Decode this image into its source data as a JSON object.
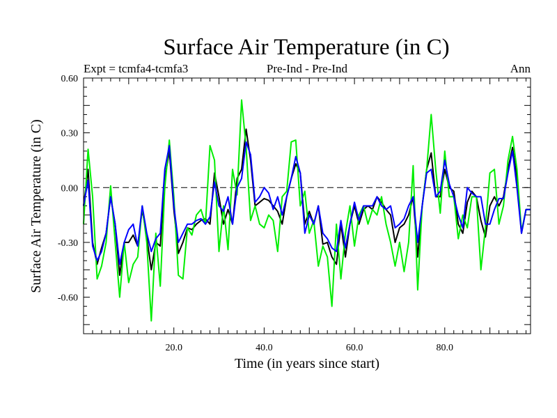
{
  "chart_data": {
    "type": "line",
    "title": "Surface Air Temperature (in C)",
    "subtitle_left": "Expt = tcmfa4-tcmfa3",
    "subtitle_center": "Pre-Ind - Pre-Ind",
    "subtitle_right": "Ann",
    "xlabel": "Time (in years since start)",
    "ylabel": "Surface Air Temperature (in C)",
    "xlim": [
      0,
      99
    ],
    "ylim": [
      -0.8,
      0.6
    ],
    "x_ticks": [
      20,
      40,
      60,
      80
    ],
    "x_tick_labels": [
      "20.0",
      "40.0",
      "60.0",
      "80.0"
    ],
    "y_ticks": [
      0.6,
      0.3,
      0.0,
      -0.3,
      -0.6
    ],
    "y_tick_labels": [
      "0.60",
      "0.30",
      "0.00",
      "-0.30",
      "-0.60"
    ],
    "zero_line": "dashed",
    "x": [
      0,
      1,
      2,
      3,
      4,
      5,
      6,
      7,
      8,
      9,
      10,
      11,
      12,
      13,
      14,
      15,
      16,
      17,
      18,
      19,
      20,
      21,
      22,
      23,
      24,
      25,
      26,
      27,
      28,
      29,
      30,
      31,
      32,
      33,
      34,
      35,
      36,
      37,
      38,
      39,
      40,
      41,
      42,
      43,
      44,
      45,
      46,
      47,
      48,
      49,
      50,
      51,
      52,
      53,
      54,
      55,
      56,
      57,
      58,
      59,
      60,
      61,
      62,
      63,
      64,
      65,
      66,
      67,
      68,
      69,
      70,
      71,
      72,
      73,
      74,
      75,
      76,
      77,
      78,
      79,
      80,
      81,
      82,
      83,
      84,
      85,
      86,
      87,
      88,
      89,
      90,
      91,
      92,
      93,
      94,
      95,
      96,
      97,
      98,
      99
    ],
    "series": [
      {
        "name": "black",
        "color": "#000000",
        "values": [
          -0.1,
          0.1,
          -0.3,
          -0.42,
          -0.33,
          -0.25,
          -0.05,
          -0.2,
          -0.48,
          -0.3,
          -0.3,
          -0.26,
          -0.32,
          -0.12,
          -0.27,
          -0.45,
          -0.3,
          -0.32,
          0.05,
          0.2,
          -0.12,
          -0.36,
          -0.3,
          -0.22,
          -0.23,
          -0.2,
          -0.18,
          -0.17,
          -0.2,
          0.08,
          -0.05,
          -0.2,
          -0.12,
          -0.2,
          0.05,
          0.1,
          0.32,
          0.15,
          -0.1,
          -0.08,
          -0.06,
          -0.07,
          -0.1,
          -0.13,
          -0.2,
          -0.05,
          0.05,
          0.13,
          0.08,
          -0.2,
          -0.13,
          -0.2,
          -0.1,
          -0.31,
          -0.3,
          -0.38,
          -0.42,
          -0.2,
          -0.38,
          -0.2,
          -0.1,
          -0.2,
          -0.12,
          -0.1,
          -0.12,
          -0.05,
          -0.08,
          -0.12,
          -0.15,
          -0.3,
          -0.22,
          -0.2,
          -0.15,
          -0.05,
          -0.38,
          -0.1,
          0.1,
          0.19,
          -0.05,
          -0.05,
          0.1,
          0.0,
          -0.02,
          -0.2,
          -0.25,
          -0.08,
          -0.02,
          -0.05,
          -0.18,
          -0.27,
          -0.1,
          -0.05,
          -0.1,
          -0.05,
          0.1,
          0.22,
          0.05,
          -0.25,
          -0.12,
          -0.12
        ]
      },
      {
        "name": "green",
        "color": "#00ee00",
        "values": [
          -0.2,
          0.21,
          -0.05,
          -0.5,
          -0.43,
          -0.3,
          0.01,
          -0.3,
          -0.6,
          -0.3,
          -0.52,
          -0.42,
          -0.38,
          -0.1,
          -0.3,
          -0.73,
          -0.25,
          -0.54,
          0.0,
          0.26,
          -0.05,
          -0.48,
          -0.5,
          -0.22,
          -0.26,
          -0.15,
          -0.12,
          -0.2,
          0.23,
          0.15,
          -0.35,
          -0.1,
          -0.34,
          0.1,
          -0.04,
          0.48,
          0.22,
          -0.18,
          -0.1,
          -0.2,
          -0.22,
          -0.15,
          -0.18,
          -0.35,
          -0.05,
          -0.02,
          0.25,
          0.26,
          -0.1,
          -0.02,
          -0.25,
          -0.18,
          -0.43,
          -0.32,
          -0.38,
          -0.65,
          -0.2,
          -0.5,
          -0.25,
          -0.1,
          -0.32,
          -0.15,
          -0.1,
          -0.2,
          -0.12,
          -0.15,
          -0.05,
          -0.2,
          -0.3,
          -0.43,
          -0.3,
          -0.46,
          -0.3,
          0.12,
          -0.56,
          -0.1,
          0.1,
          0.4,
          0.1,
          -0.14,
          0.2,
          -0.05,
          -0.05,
          -0.28,
          -0.15,
          -0.22,
          -0.05,
          -0.05,
          -0.45,
          -0.22,
          0.08,
          0.1,
          -0.2,
          -0.1,
          0.15,
          0.28,
          0.1,
          -0.24,
          -0.12,
          -0.12
        ]
      },
      {
        "name": "blue",
        "color": "#0000ff",
        "values": [
          -0.1,
          0.04,
          -0.32,
          -0.4,
          -0.35,
          -0.25,
          -0.05,
          -0.2,
          -0.42,
          -0.3,
          -0.23,
          -0.2,
          -0.32,
          -0.1,
          -0.25,
          -0.35,
          -0.28,
          -0.25,
          0.1,
          0.23,
          -0.1,
          -0.3,
          -0.25,
          -0.2,
          -0.2,
          -0.18,
          -0.17,
          -0.2,
          -0.16,
          0.03,
          -0.1,
          -0.13,
          -0.05,
          -0.2,
          0.0,
          0.05,
          0.25,
          0.18,
          -0.08,
          -0.05,
          0.0,
          -0.03,
          -0.12,
          -0.05,
          -0.15,
          -0.05,
          0.05,
          0.17,
          0.08,
          -0.25,
          -0.15,
          -0.2,
          -0.1,
          -0.25,
          -0.28,
          -0.33,
          -0.35,
          -0.18,
          -0.33,
          -0.2,
          -0.08,
          -0.18,
          -0.1,
          -0.1,
          -0.1,
          -0.05,
          -0.1,
          -0.12,
          -0.1,
          -0.22,
          -0.2,
          -0.17,
          -0.1,
          -0.05,
          -0.3,
          -0.1,
          0.08,
          0.1,
          -0.05,
          -0.02,
          0.15,
          0.02,
          -0.05,
          -0.15,
          -0.22,
          0.0,
          -0.03,
          -0.05,
          -0.05,
          -0.2,
          -0.2,
          -0.12,
          -0.06,
          -0.06,
          0.08,
          0.2,
          0.0,
          -0.25,
          -0.12,
          -0.12
        ]
      }
    ]
  }
}
